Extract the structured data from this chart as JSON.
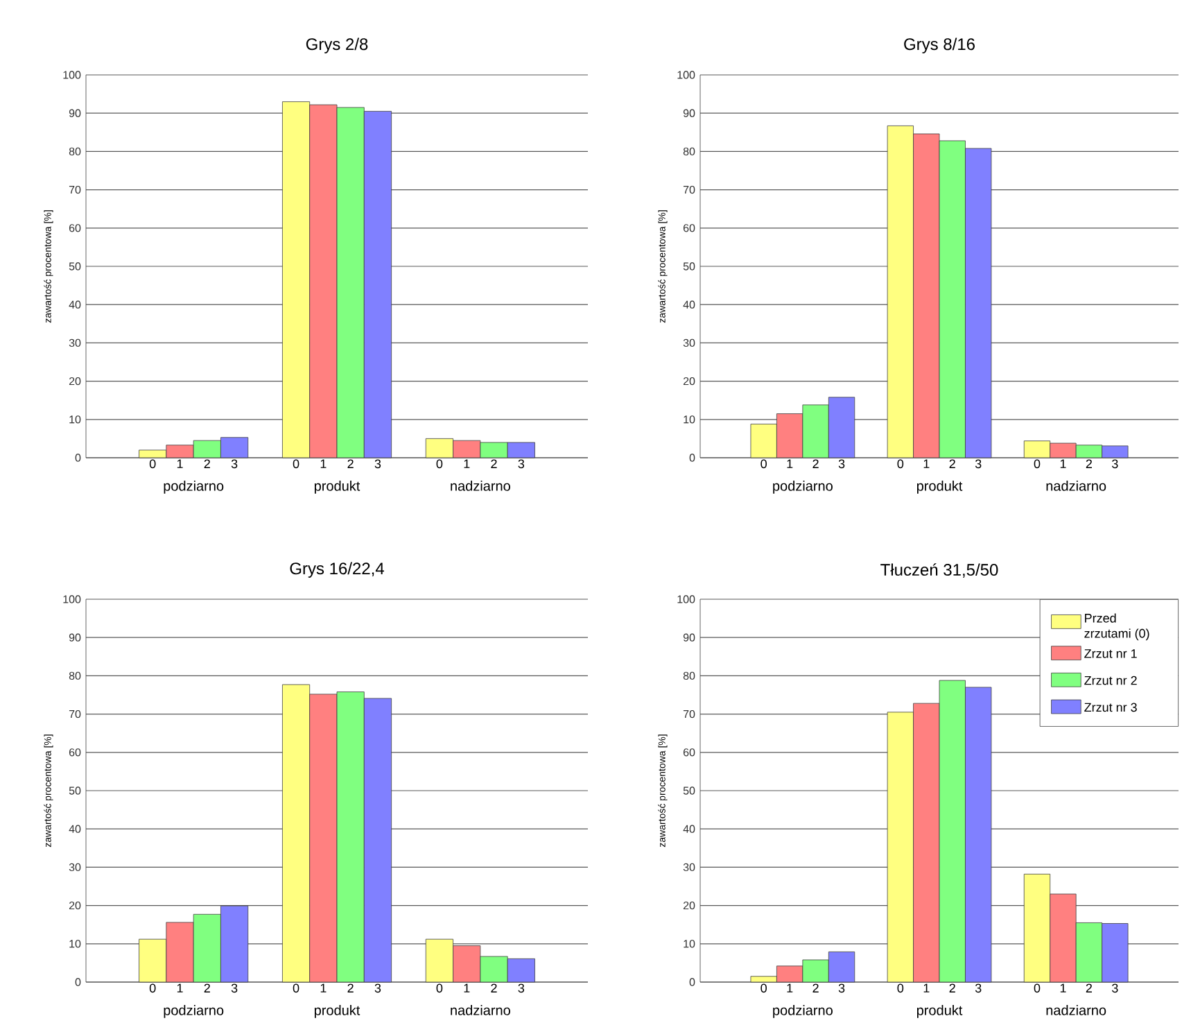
{
  "chart_data": [
    {
      "type": "bar",
      "title": "Grys 2/8",
      "ylabel": "zawartość procentowa [%]",
      "categories": [
        "podziarno",
        "produkt",
        "nadziarno"
      ],
      "ylim": [
        0,
        100
      ],
      "yticks": [
        0,
        10,
        20,
        30,
        40,
        50,
        60,
        70,
        80,
        90,
        100
      ],
      "grid": "y",
      "series": [
        {
          "color": "#ffff80",
          "values": [
            2,
            93,
            5
          ]
        },
        {
          "color": "#ff8080",
          "values": [
            3.3,
            92.2,
            4.5
          ]
        },
        {
          "color": "#80ff80",
          "values": [
            4.5,
            91.5,
            4
          ]
        },
        {
          "color": "#8080ff",
          "values": [
            5.3,
            90.5,
            4
          ]
        }
      ],
      "annotations": [
        "0",
        "1",
        "2",
        "3",
        "0",
        "1",
        "2",
        "3",
        "0",
        "1",
        "2",
        "3"
      ]
    },
    {
      "type": "bar",
      "title": "Grys 8/16",
      "ylabel": "zawartość procentowa [%]",
      "categories": [
        "podziarno",
        "produkt",
        "nadziarno"
      ],
      "ylim": [
        0,
        100
      ],
      "yticks": [
        0,
        10,
        20,
        30,
        40,
        50,
        60,
        70,
        80,
        90,
        100
      ],
      "grid": "y",
      "series": [
        {
          "color": "#ffff80",
          "values": [
            8.8,
            86.7,
            4.4
          ]
        },
        {
          "color": "#ff8080",
          "values": [
            11.5,
            84.6,
            3.8
          ]
        },
        {
          "color": "#80ff80",
          "values": [
            13.8,
            82.8,
            3.3
          ]
        },
        {
          "color": "#8080ff",
          "values": [
            15.8,
            80.8,
            3.1
          ]
        }
      ],
      "annotations": [
        "0",
        "1",
        "2",
        "3",
        "0",
        "1",
        "2",
        "3",
        "0",
        "1",
        "2",
        "3"
      ]
    },
    {
      "type": "bar",
      "title": "Grys 16/22,4",
      "ylabel": "zawartość procentowa [%]",
      "categories": [
        "podziarno",
        "produkt",
        "nadziarno"
      ],
      "ylim": [
        0,
        100
      ],
      "yticks": [
        0,
        10,
        20,
        30,
        40,
        50,
        60,
        70,
        80,
        90,
        100
      ],
      "grid": "y",
      "series": [
        {
          "color": "#ffff80",
          "values": [
            11.2,
            77.7,
            11.2
          ]
        },
        {
          "color": "#ff8080",
          "values": [
            15.6,
            75.2,
            9.5
          ]
        },
        {
          "color": "#80ff80",
          "values": [
            17.7,
            75.8,
            6.7
          ]
        },
        {
          "color": "#8080ff",
          "values": [
            19.9,
            74.1,
            6.1
          ]
        }
      ],
      "annotations": [
        "0",
        "1",
        "2",
        "3",
        "0",
        "1",
        "2",
        "3",
        "0",
        "1",
        "2",
        "3"
      ]
    },
    {
      "type": "bar",
      "title": "Tłuczeń 31,5/50",
      "ylabel": "zawartość procentowa [%]",
      "categories": [
        "podziarno",
        "produkt",
        "nadziarno"
      ],
      "ylim": [
        0,
        100
      ],
      "yticks": [
        0,
        10,
        20,
        30,
        40,
        50,
        60,
        70,
        80,
        90,
        100
      ],
      "grid": "y",
      "legend": "top right",
      "series": [
        {
          "name": "Przed zrzutami (0)",
          "color": "#ffff80",
          "values": [
            1.5,
            70.5,
            28.2
          ]
        },
        {
          "name": "Zrzut nr 1",
          "color": "#ff8080",
          "values": [
            4.2,
            72.8,
            23
          ]
        },
        {
          "name": "Zrzut nr 2",
          "color": "#80ff80",
          "values": [
            5.8,
            78.8,
            15.5
          ]
        },
        {
          "name": "Zrzut nr 3",
          "color": "#8080ff",
          "values": [
            7.9,
            77,
            15.3
          ]
        }
      ],
      "annotations": [
        "0",
        "1",
        "2",
        "3",
        "0",
        "1",
        "2",
        "3",
        "0",
        "1",
        "2",
        "3"
      ]
    }
  ]
}
